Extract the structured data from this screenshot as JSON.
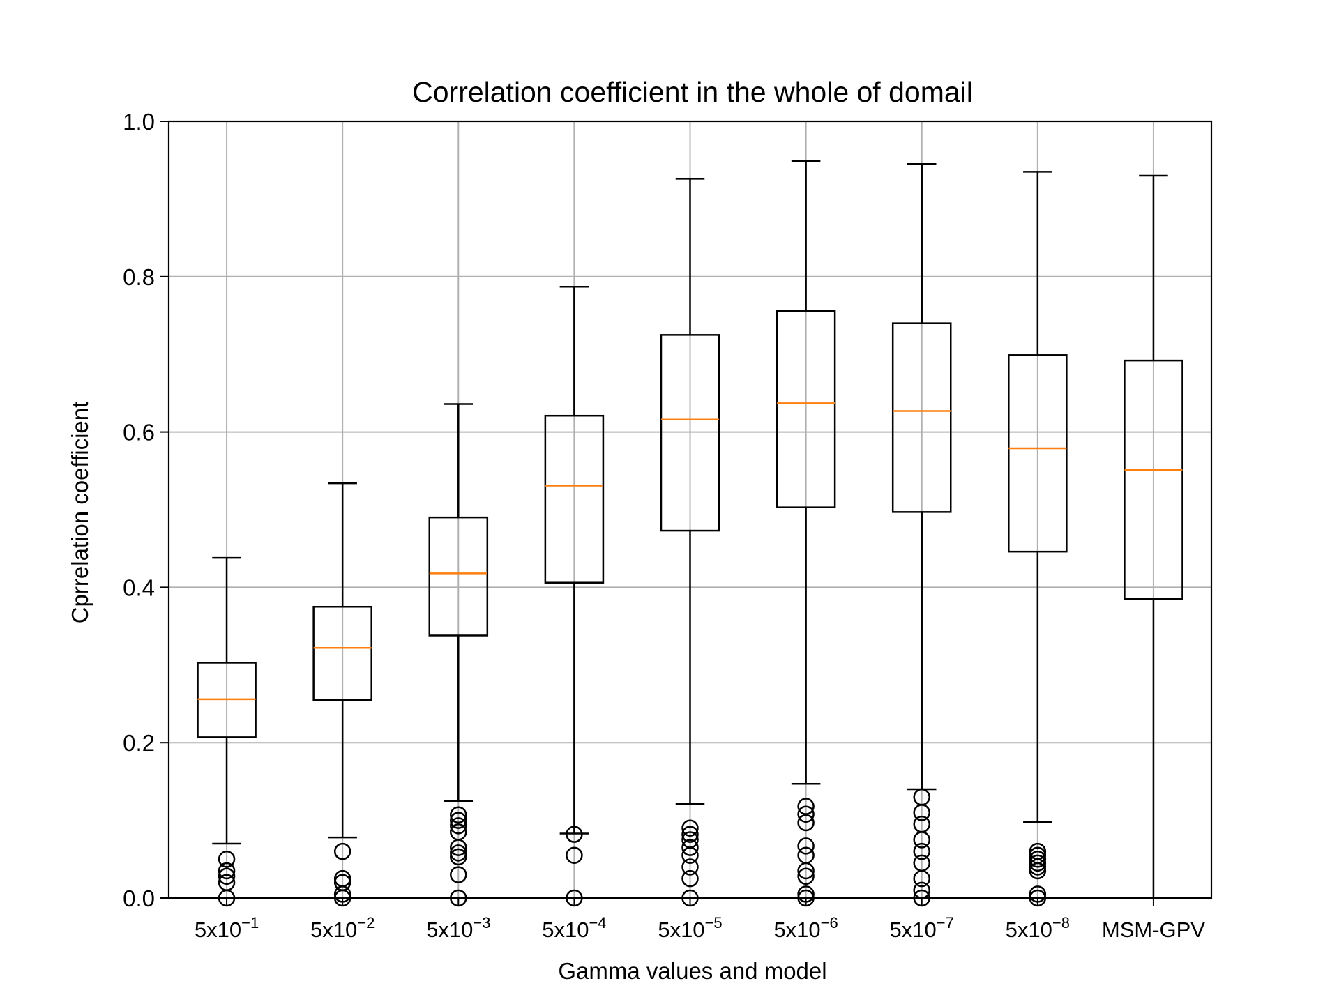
{
  "chart_data": {
    "type": "boxplot",
    "title": "Correlation coefficient in the whole of domail",
    "xlabel": "Gamma values and model",
    "ylabel": "Cprrelation coefficient",
    "ylim": [
      0.0,
      1.0
    ],
    "yticks": [
      "0.0",
      "0.2",
      "0.4",
      "0.6",
      "0.8",
      "1.0"
    ],
    "grid": true,
    "colors": {
      "box": "#000000",
      "median": "#ff7f0e",
      "grid": "#b0b0b0"
    },
    "categories": [
      {
        "base": "5x10",
        "exp": "−1"
      },
      {
        "base": "5x10",
        "exp": "−2"
      },
      {
        "base": "5x10",
        "exp": "−3"
      },
      {
        "base": "5x10",
        "exp": "−4"
      },
      {
        "base": "5x10",
        "exp": "−5"
      },
      {
        "base": "5x10",
        "exp": "−6"
      },
      {
        "base": "5x10",
        "exp": "−7"
      },
      {
        "base": "5x10",
        "exp": "−8"
      },
      {
        "base": "MSM-GPV",
        "exp": ""
      }
    ],
    "boxes": [
      {
        "whislo": 0.07,
        "q1": 0.207,
        "med": 0.256,
        "q3": 0.303,
        "whishi": 0.438,
        "fliers": [
          0.05,
          0.035,
          0.028,
          0.02,
          0.0
        ]
      },
      {
        "whislo": 0.078,
        "q1": 0.255,
        "med": 0.322,
        "q3": 0.375,
        "whishi": 0.534,
        "fliers": [
          0.06,
          0.025,
          0.02,
          0.005,
          0.0
        ]
      },
      {
        "whislo": 0.125,
        "q1": 0.338,
        "med": 0.418,
        "q3": 0.49,
        "whishi": 0.636,
        "fliers": [
          0.107,
          0.1,
          0.093,
          0.085,
          0.065,
          0.058,
          0.053,
          0.03,
          0.0
        ]
      },
      {
        "whislo": 0.083,
        "q1": 0.406,
        "med": 0.531,
        "q3": 0.621,
        "whishi": 0.787,
        "fliers": [
          0.082,
          0.055,
          0.0
        ]
      },
      {
        "whislo": 0.121,
        "q1": 0.473,
        "med": 0.616,
        "q3": 0.725,
        "whishi": 0.926,
        "fliers": [
          0.09,
          0.082,
          0.075,
          0.065,
          0.055,
          0.04,
          0.025,
          0.0
        ]
      },
      {
        "whislo": 0.147,
        "q1": 0.503,
        "med": 0.637,
        "q3": 0.756,
        "whishi": 0.949,
        "fliers": [
          0.118,
          0.108,
          0.097,
          0.067,
          0.055,
          0.035,
          0.028,
          0.005,
          0.0
        ]
      },
      {
        "whislo": 0.14,
        "q1": 0.497,
        "med": 0.627,
        "q3": 0.74,
        "whishi": 0.945,
        "fliers": [
          0.13,
          0.11,
          0.095,
          0.075,
          0.06,
          0.045,
          0.025,
          0.01,
          0.0
        ]
      },
      {
        "whislo": 0.098,
        "q1": 0.446,
        "med": 0.579,
        "q3": 0.699,
        "whishi": 0.935,
        "fliers": [
          0.06,
          0.055,
          0.05,
          0.045,
          0.04,
          0.035,
          0.005,
          0.0
        ]
      },
      {
        "whislo": 0.0,
        "q1": 0.385,
        "med": 0.551,
        "q3": 0.692,
        "whishi": 0.93,
        "fliers": []
      }
    ]
  }
}
